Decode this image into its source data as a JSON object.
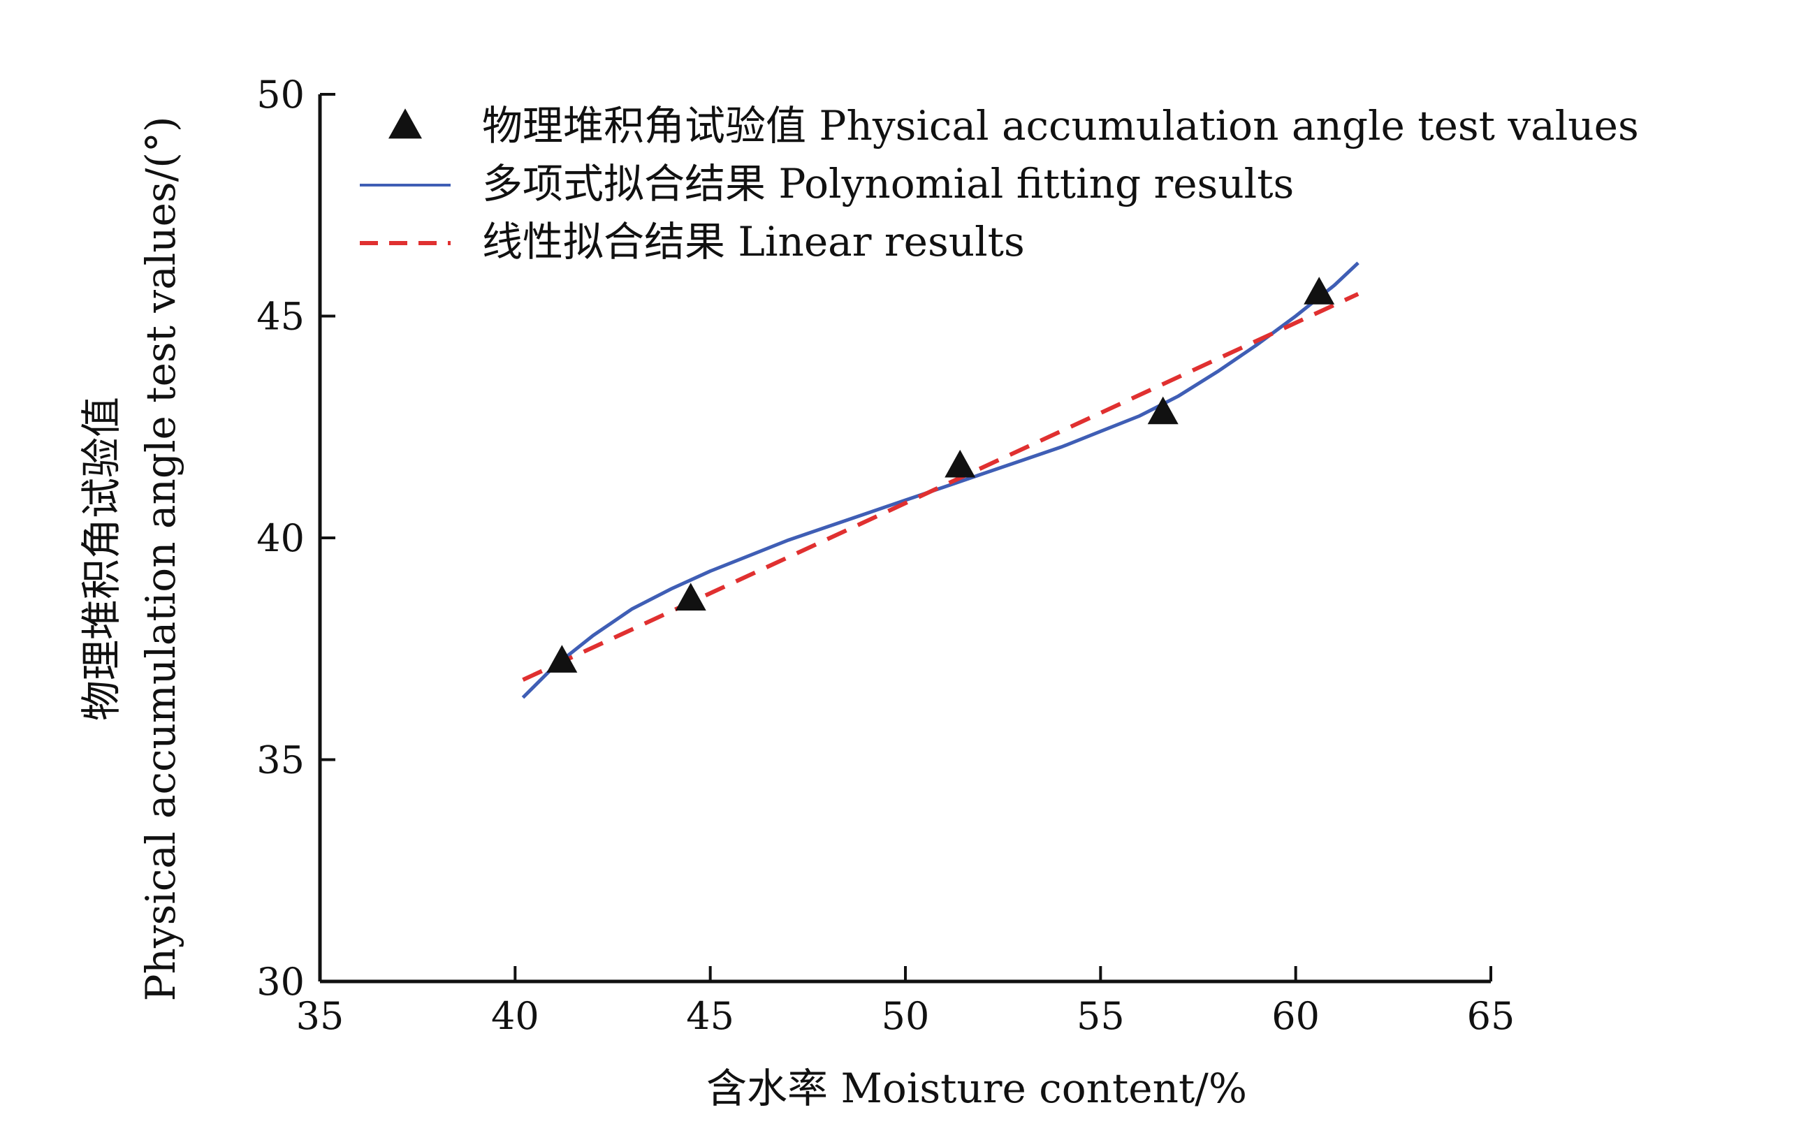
{
  "chart_data": {
    "type": "scatter",
    "xlabel": "含水率 Moisture content/%",
    "ylabel_lines": [
      "物理堆积角试验值",
      "Physical accumulation angle test values/(°)"
    ],
    "xlim": [
      35,
      65
    ],
    "ylim": [
      30,
      50
    ],
    "x_ticks": [
      "35",
      "40",
      "45",
      "50",
      "55",
      "60",
      "65"
    ],
    "y_ticks": [
      "30",
      "35",
      "40",
      "45",
      "50"
    ],
    "grid": false,
    "legend_position": "top",
    "series": [
      {
        "name": "物理堆积角试验值 Physical accumulation angle test values",
        "kind": "marker",
        "marker": "triangle",
        "color": "#111111",
        "points": [
          {
            "x": 41.2,
            "y": 37.2
          },
          {
            "x": 44.5,
            "y": 38.6
          },
          {
            "x": 51.4,
            "y": 41.6
          },
          {
            "x": 56.6,
            "y": 42.8
          },
          {
            "x": 60.6,
            "y": 45.5
          }
        ]
      },
      {
        "name": "多项式拟合结果 Polynomial fitting results",
        "kind": "line",
        "style": "solid",
        "color": "#3f5eb5",
        "points": [
          {
            "x": 40.2,
            "y": 36.4
          },
          {
            "x": 41.0,
            "y": 37.1
          },
          {
            "x": 42.0,
            "y": 37.8
          },
          {
            "x": 43.0,
            "y": 38.4
          },
          {
            "x": 44.0,
            "y": 38.85
          },
          {
            "x": 45.0,
            "y": 39.25
          },
          {
            "x": 46.0,
            "y": 39.6
          },
          {
            "x": 47.0,
            "y": 39.95
          },
          {
            "x": 48.0,
            "y": 40.25
          },
          {
            "x": 49.0,
            "y": 40.55
          },
          {
            "x": 50.0,
            "y": 40.85
          },
          {
            "x": 51.0,
            "y": 41.15
          },
          {
            "x": 52.0,
            "y": 41.45
          },
          {
            "x": 53.0,
            "y": 41.75
          },
          {
            "x": 54.0,
            "y": 42.05
          },
          {
            "x": 55.0,
            "y": 42.4
          },
          {
            "x": 56.0,
            "y": 42.75
          },
          {
            "x": 57.0,
            "y": 43.2
          },
          {
            "x": 58.0,
            "y": 43.75
          },
          {
            "x": 59.0,
            "y": 44.35
          },
          {
            "x": 60.0,
            "y": 45.0
          },
          {
            "x": 61.0,
            "y": 45.7
          },
          {
            "x": 61.6,
            "y": 46.2
          }
        ]
      },
      {
        "name": "线性拟合结果 Linear results",
        "kind": "line",
        "style": "dashed",
        "color": "#e03030",
        "points": [
          {
            "x": 40.2,
            "y": 36.8
          },
          {
            "x": 61.6,
            "y": 45.5
          }
        ]
      }
    ]
  }
}
